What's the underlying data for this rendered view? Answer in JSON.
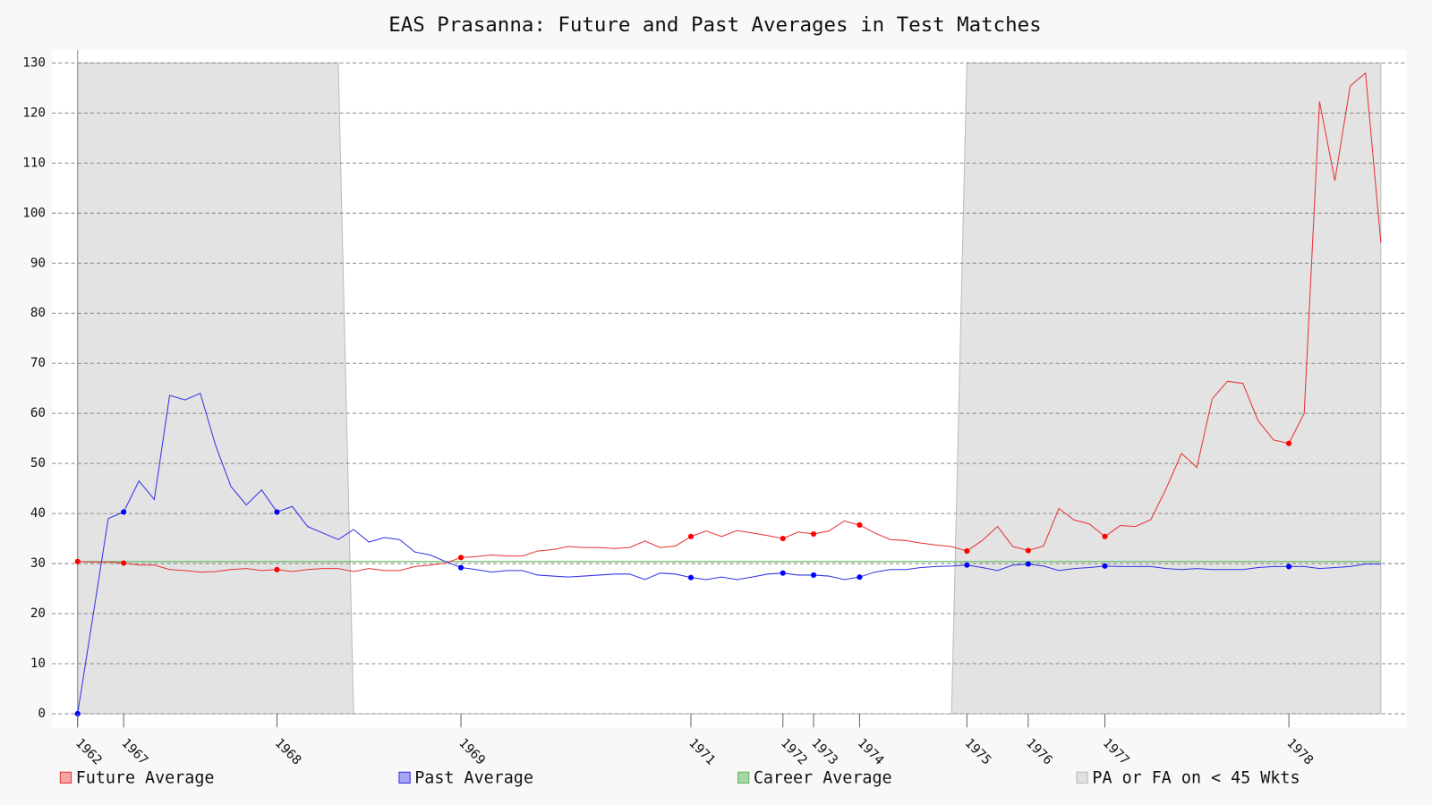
{
  "chart_data": {
    "type": "line",
    "title": "EAS Prasanna: Future and Past Averages in Test Matches",
    "x": [
      1,
      2,
      3,
      4,
      5,
      6,
      7,
      8,
      9,
      10,
      11,
      12,
      13,
      14,
      15,
      16,
      17,
      18,
      19,
      20,
      21,
      22,
      23,
      24,
      25,
      26,
      27,
      28,
      29,
      30,
      31,
      32,
      33,
      34,
      35,
      36,
      37,
      38,
      39,
      40,
      41,
      42,
      43,
      44,
      45,
      46,
      47,
      48,
      49,
      50,
      51,
      52,
      53,
      54,
      55,
      56,
      57,
      58,
      59,
      60,
      61,
      62,
      63,
      64,
      65,
      66,
      67,
      68,
      69,
      70,
      71,
      72,
      73,
      74,
      75,
      76,
      77,
      78,
      79,
      80,
      81,
      82,
      83,
      84,
      85,
      86
    ],
    "xlim": [
      1,
      86
    ],
    "xticks": [
      {
        "value": 1,
        "label": "1962"
      },
      {
        "value": 4,
        "label": "1967"
      },
      {
        "value": 14,
        "label": "1968"
      },
      {
        "value": 26,
        "label": "1969"
      },
      {
        "value": 41,
        "label": "1971"
      },
      {
        "value": 47,
        "label": "1972"
      },
      {
        "value": 49,
        "label": "1973"
      },
      {
        "value": 52,
        "label": "1974"
      },
      {
        "value": 59,
        "label": "1975"
      },
      {
        "value": 63,
        "label": "1976"
      },
      {
        "value": 68,
        "label": "1977"
      },
      {
        "value": 80,
        "label": "1978"
      }
    ],
    "ylim": [
      0,
      130
    ],
    "yticks": [
      0,
      10,
      20,
      30,
      40,
      50,
      60,
      70,
      80,
      90,
      100,
      110,
      120,
      130
    ],
    "grid": true,
    "legend": "bottom",
    "series": [
      {
        "name": "Future Average",
        "color": "#e83030",
        "values": [
          30.4,
          30.3,
          30.3,
          30.1,
          29.7,
          29.7,
          28.8,
          28.6,
          28.3,
          28.4,
          28.8,
          29.0,
          28.6,
          28.8,
          28.4,
          28.8,
          29.0,
          29.0,
          28.4,
          29.0,
          28.6,
          28.6,
          29.4,
          29.7,
          30.1,
          31.2,
          31.4,
          31.7,
          31.5,
          31.5,
          32.5,
          32.8,
          33.4,
          33.2,
          33.2,
          33.0,
          33.2,
          34.5,
          33.2,
          33.5,
          35.4,
          36.5,
          35.4,
          36.6,
          36.1,
          35.6,
          35.0,
          36.3,
          35.9,
          36.5,
          38.5,
          37.7,
          36.1,
          34.8,
          34.6,
          34.1,
          33.7,
          33.4,
          32.5,
          34.6,
          37.4,
          33.4,
          32.6,
          33.5,
          41.0,
          38.7,
          37.9,
          35.4,
          37.6,
          37.4,
          38.8,
          45.0,
          52.0,
          49.2,
          62.9,
          66.4,
          66.0,
          58.5,
          54.7,
          54.0,
          60.0,
          122.3,
          106.5,
          125.4,
          128.0,
          94.1
        ]
      },
      {
        "name": "Past Average",
        "color": "#3030e8",
        "values": [
          0,
          19.5,
          39.0,
          40.3,
          46.5,
          42.8,
          63.6,
          62.7,
          64.0,
          53.6,
          45.4,
          41.7,
          44.7,
          40.3,
          41.4,
          37.4,
          36.1,
          34.8,
          36.8,
          34.3,
          35.2,
          34.8,
          32.3,
          31.7,
          30.4,
          29.2,
          28.8,
          28.3,
          28.6,
          28.6,
          27.7,
          27.5,
          27.3,
          27.5,
          27.7,
          27.9,
          27.9,
          26.8,
          28.1,
          27.9,
          27.2,
          26.8,
          27.3,
          26.8,
          27.3,
          27.9,
          28.1,
          27.7,
          27.7,
          27.5,
          26.8,
          27.3,
          28.3,
          28.8,
          28.8,
          29.2,
          29.4,
          29.5,
          29.7,
          29.2,
          28.6,
          29.7,
          29.9,
          29.5,
          28.6,
          29.0,
          29.2,
          29.5,
          29.4,
          29.4,
          29.4,
          29.0,
          28.8,
          29.0,
          28.8,
          28.8,
          28.8,
          29.2,
          29.4,
          29.4,
          29.4,
          29.0,
          29.2,
          29.4,
          29.9,
          29.9
        ]
      },
      {
        "name": "Career Average",
        "color": "#5cb85c",
        "value": 30.4
      },
      {
        "name": "PA or FA on < 45 Wkts",
        "color": "#bbbbbb",
        "values": [
          130,
          130,
          130,
          130,
          130,
          130,
          130,
          130,
          130,
          130,
          130,
          130,
          130,
          130,
          130,
          130,
          130,
          130,
          0,
          0,
          0,
          0,
          0,
          0,
          0,
          0,
          0,
          0,
          0,
          0,
          0,
          0,
          0,
          0,
          0,
          0,
          0,
          0,
          0,
          0,
          0,
          0,
          0,
          0,
          0,
          0,
          0,
          0,
          0,
          0,
          0,
          0,
          0,
          0,
          0,
          0,
          0,
          0,
          130,
          130,
          130,
          130,
          130,
          130,
          130,
          130,
          130,
          130,
          130,
          130,
          130,
          130,
          130,
          130,
          130,
          130,
          130,
          130,
          130,
          130,
          130,
          130,
          130,
          130,
          130,
          130
        ]
      }
    ]
  }
}
